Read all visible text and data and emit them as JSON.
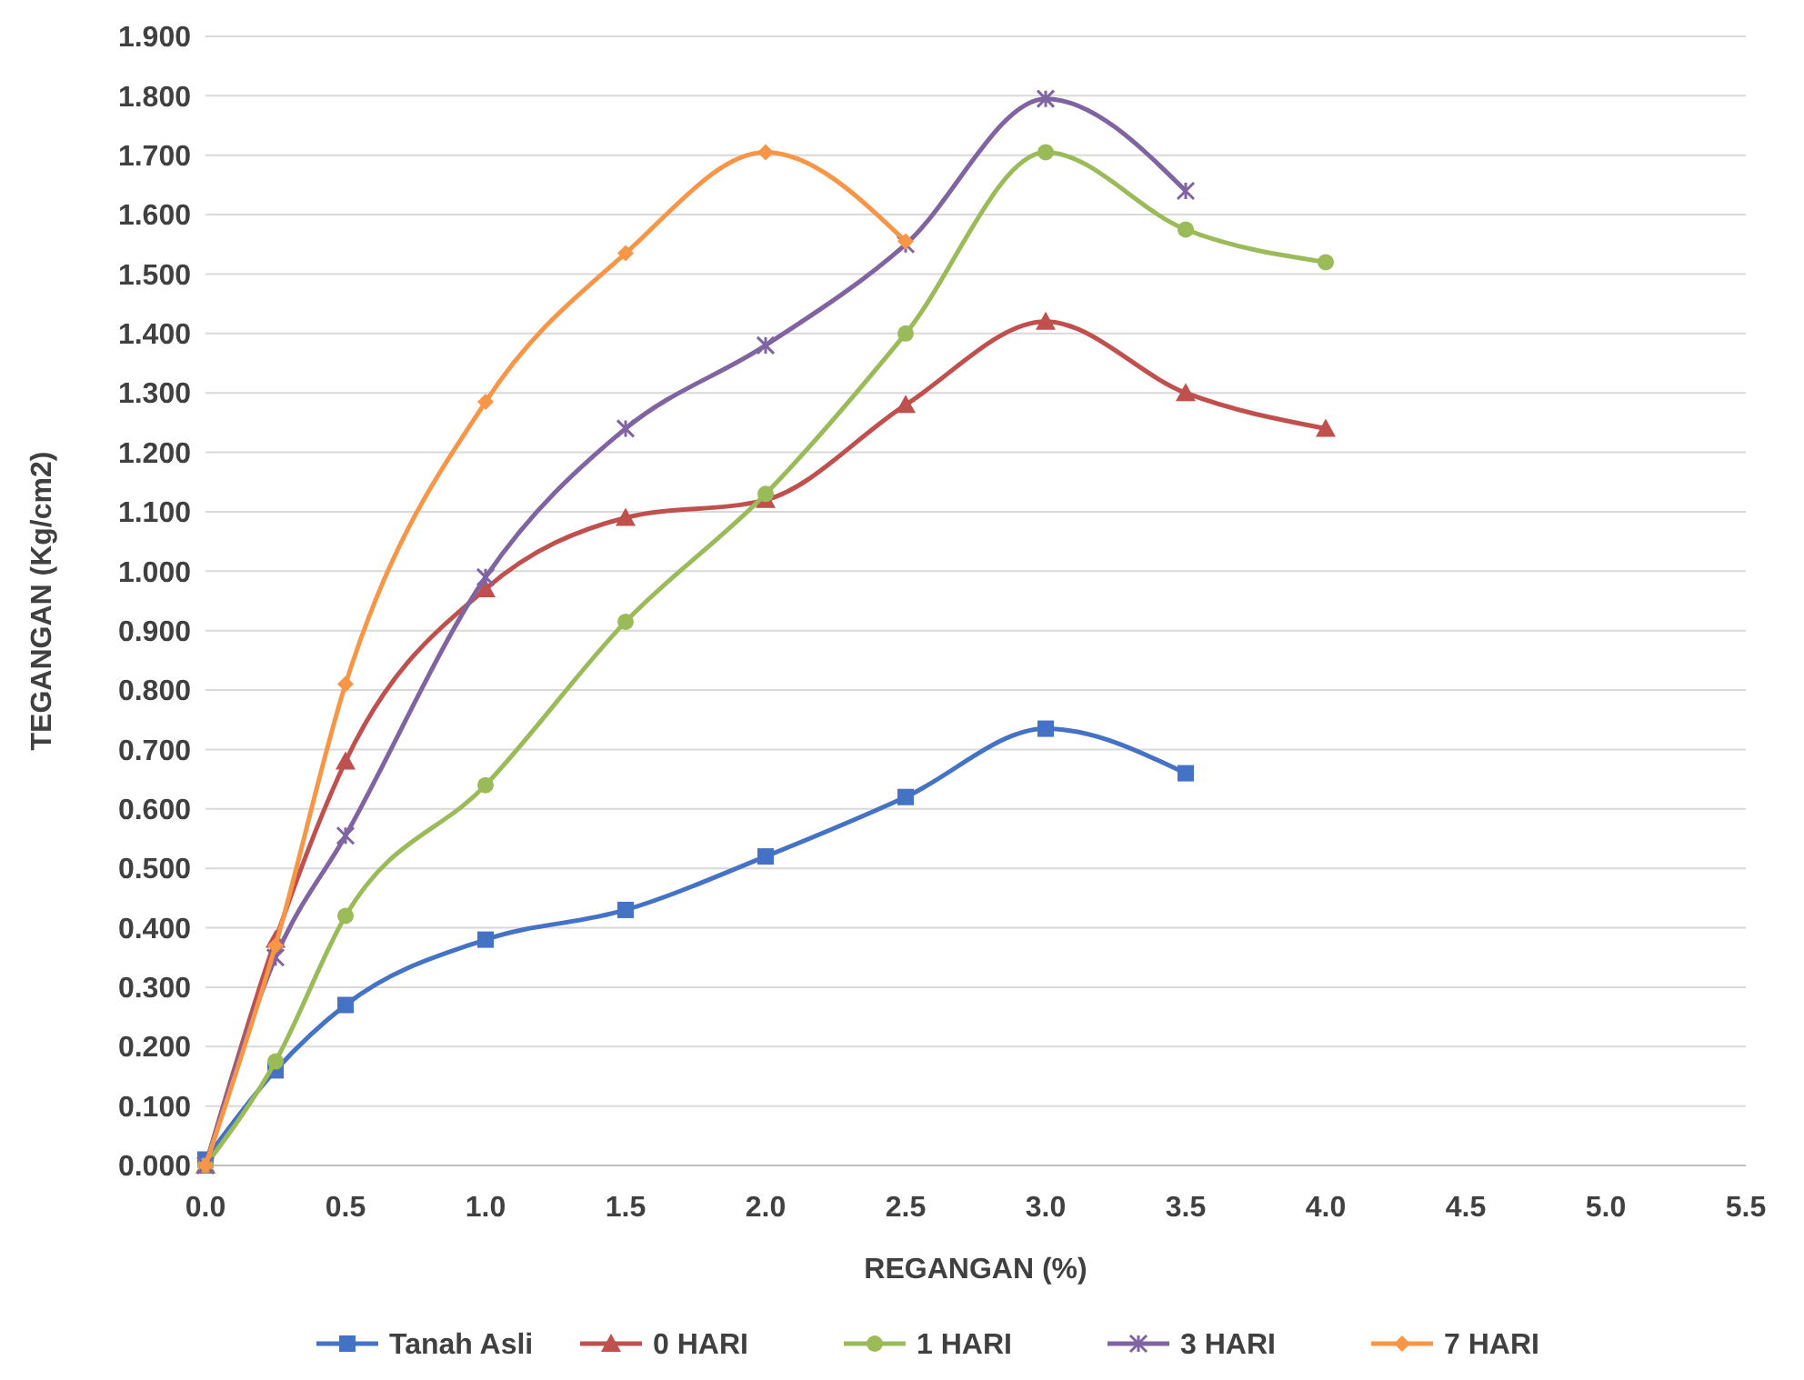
{
  "chart_data": {
    "type": "line",
    "xlabel": "REGANGAN (%)",
    "ylabel": "TEGANGAN (Kg/cm2)",
    "xlim": [
      0,
      5.5
    ],
    "xticks": [
      {
        "value": 0,
        "label": "0.0"
      },
      {
        "value": 0.5,
        "label": "0.5"
      },
      {
        "value": 1,
        "label": "1.0"
      },
      {
        "value": 1.5,
        "label": "1.5"
      },
      {
        "value": 2,
        "label": "2.0"
      },
      {
        "value": 2.5,
        "label": "2.5"
      },
      {
        "value": 3,
        "label": "3.0"
      },
      {
        "value": 3.5,
        "label": "3.5"
      },
      {
        "value": 4,
        "label": "4.0"
      },
      {
        "value": 4.5,
        "label": "4.5"
      },
      {
        "value": 5,
        "label": "5.0"
      },
      {
        "value": 5.5,
        "label": "5.5"
      }
    ],
    "ylim": [
      0,
      1.9
    ],
    "yticks": [
      {
        "value": 0,
        "label": "0.000"
      },
      {
        "value": 0.1,
        "label": "0.100"
      },
      {
        "value": 0.2,
        "label": "0.200"
      },
      {
        "value": 0.3,
        "label": "0.300"
      },
      {
        "value": 0.4,
        "label": "0.400"
      },
      {
        "value": 0.5,
        "label": "0.500"
      },
      {
        "value": 0.6,
        "label": "0.600"
      },
      {
        "value": 0.7,
        "label": "0.700"
      },
      {
        "value": 0.8,
        "label": "0.800"
      },
      {
        "value": 0.9,
        "label": "0.900"
      },
      {
        "value": 1,
        "label": "1.000"
      },
      {
        "value": 1.1,
        "label": "1.100"
      },
      {
        "value": 1.2,
        "label": "1.200"
      },
      {
        "value": 1.3,
        "label": "1.300"
      },
      {
        "value": 1.4,
        "label": "1.400"
      },
      {
        "value": 1.5,
        "label": "1.500"
      },
      {
        "value": 1.6,
        "label": "1.600"
      },
      {
        "value": 1.7,
        "label": "1.700"
      },
      {
        "value": 1.8,
        "label": "1.800"
      },
      {
        "value": 1.9,
        "label": "1.900"
      }
    ],
    "grid": "y",
    "legend": "bottom",
    "line_style": "solid",
    "series": [
      {
        "name": "Tanah Asli",
        "color": "#4472c4",
        "marker": "square",
        "x": [
          0,
          0.25,
          0.5,
          1,
          1.5,
          2,
          2.5,
          3,
          3.5
        ],
        "values": [
          0.01,
          0.16,
          0.27,
          0.38,
          0.43,
          0.52,
          0.62,
          0.735,
          0.66
        ]
      },
      {
        "name": "0 HARI",
        "color": "#c0504d",
        "marker": "triangle",
        "x": [
          0,
          0.25,
          0.5,
          1,
          1.5,
          2,
          2.5,
          3,
          3.5,
          4
        ],
        "values": [
          0,
          0.38,
          0.68,
          0.97,
          1.09,
          1.12,
          1.28,
          1.42,
          1.3,
          1.24
        ]
      },
      {
        "name": "1 HARI",
        "color": "#9bbb59",
        "marker": "circle",
        "x": [
          0,
          0.25,
          0.5,
          1,
          1.5,
          2,
          2.5,
          3,
          3.5,
          4
        ],
        "values": [
          0,
          0.175,
          0.42,
          0.64,
          0.915,
          1.13,
          1.4,
          1.705,
          1.575,
          1.52
        ]
      },
      {
        "name": "3 HARI",
        "color": "#8064a2",
        "marker": "cross",
        "x": [
          0,
          0.25,
          0.5,
          1,
          1.5,
          2,
          2.5,
          3,
          3.5
        ],
        "values": [
          0,
          0.35,
          0.555,
          0.99,
          1.24,
          1.38,
          1.55,
          1.795,
          1.64
        ]
      },
      {
        "name": "7 HARI",
        "color": "#f79646",
        "marker": "diamond",
        "x": [
          0,
          0.25,
          0.5,
          1,
          1.5,
          2,
          2.5
        ],
        "values": [
          0,
          0.37,
          0.81,
          1.285,
          1.535,
          1.705,
          1.555
        ]
      }
    ]
  }
}
